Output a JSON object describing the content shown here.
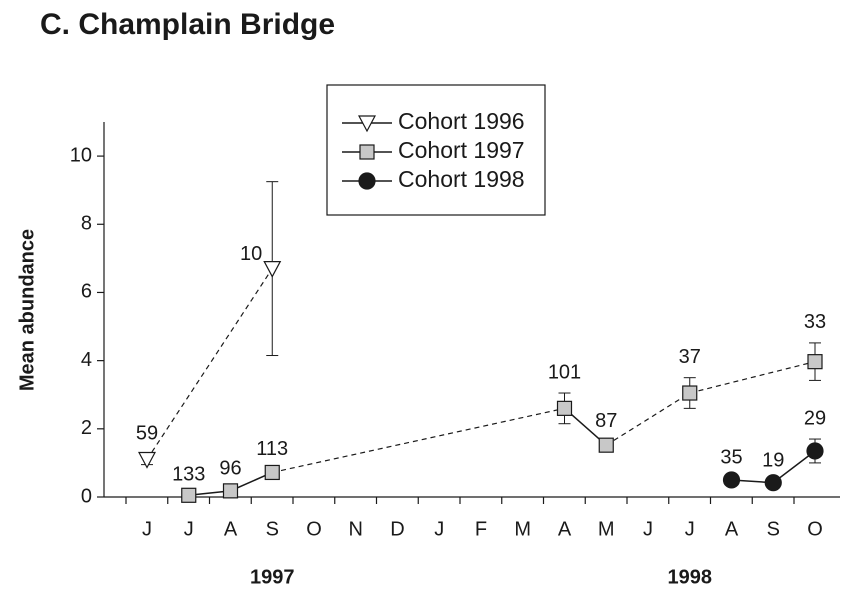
{
  "chart_data": {
    "type": "line",
    "title": "C. Champlain Bridge",
    "y_label": "Mean abundance",
    "years": [
      "1997",
      "1998"
    ],
    "categories": [
      "J",
      "J",
      "A",
      "S",
      "O",
      "N",
      "D",
      "J",
      "F",
      "M",
      "A",
      "M",
      "J",
      "J",
      "A",
      "S",
      "O"
    ],
    "ylim": [
      0,
      11
    ],
    "yticks": [
      0,
      2,
      4,
      6,
      8,
      10
    ],
    "legend": "top-center",
    "bridge_gaps": "dashed",
    "series": [
      {
        "name": "Cohort 1996",
        "marker": "triangle-down",
        "color": "#ffffff",
        "values": [
          1.1,
          null,
          null,
          6.7,
          null,
          null,
          null,
          null,
          null,
          null,
          null,
          null,
          null,
          null,
          null,
          null,
          null
        ],
        "errors": [
          0.15,
          null,
          null,
          2.55,
          null,
          null,
          null,
          null,
          null,
          null,
          null,
          null,
          null,
          null,
          null,
          null,
          null
        ],
        "labels": [
          "59",
          null,
          null,
          "10",
          null,
          null,
          null,
          null,
          null,
          null,
          null,
          null,
          null,
          null,
          null,
          null,
          null
        ]
      },
      {
        "name": "Cohort 1997",
        "marker": "square",
        "color": "#c8c8c8",
        "values": [
          null,
          0.05,
          0.18,
          0.72,
          null,
          null,
          null,
          null,
          null,
          null,
          2.6,
          1.52,
          null,
          3.05,
          null,
          null,
          3.97
        ],
        "errors": [
          null,
          0,
          0.05,
          0.08,
          null,
          null,
          null,
          null,
          null,
          null,
          0.45,
          0.1,
          null,
          0.45,
          null,
          null,
          0.55
        ],
        "labels": [
          null,
          "133",
          "96",
          "113",
          null,
          null,
          null,
          null,
          null,
          null,
          "101",
          "87",
          null,
          "37",
          null,
          null,
          "33"
        ]
      },
      {
        "name": "Cohort 1998",
        "marker": "circle",
        "color": "#1a1a1a",
        "values": [
          null,
          null,
          null,
          null,
          null,
          null,
          null,
          null,
          null,
          null,
          null,
          null,
          null,
          null,
          0.5,
          0.42,
          1.35
        ],
        "errors": [
          null,
          null,
          null,
          null,
          null,
          null,
          null,
          null,
          null,
          null,
          null,
          null,
          null,
          null,
          0.05,
          0.05,
          0.35
        ],
        "labels": [
          null,
          null,
          null,
          null,
          null,
          null,
          null,
          null,
          null,
          null,
          null,
          null,
          null,
          null,
          "35",
          "19",
          "29"
        ]
      }
    ]
  }
}
